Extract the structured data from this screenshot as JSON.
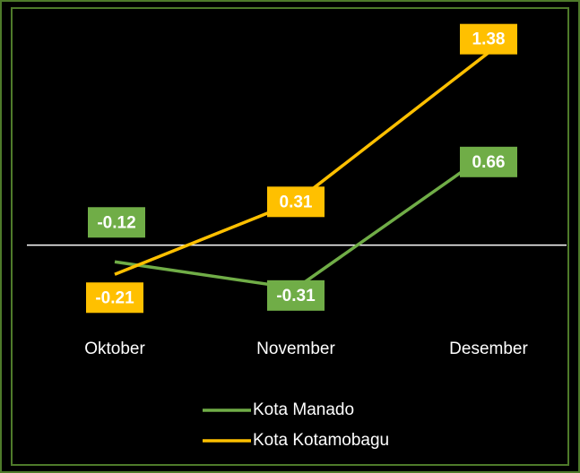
{
  "chart_data": {
    "type": "line",
    "categories": [
      "Oktober",
      "November",
      "Desember"
    ],
    "series": [
      {
        "name": "Kota Manado",
        "color": "#70ad47",
        "values": [
          -0.12,
          -0.31,
          0.66
        ]
      },
      {
        "name": "Kota Kotamobagu",
        "color": "#ffc000",
        "values": [
          -0.21,
          0.31,
          1.38
        ]
      }
    ],
    "ylim": [
      -0.6,
      1.5
    ]
  }
}
